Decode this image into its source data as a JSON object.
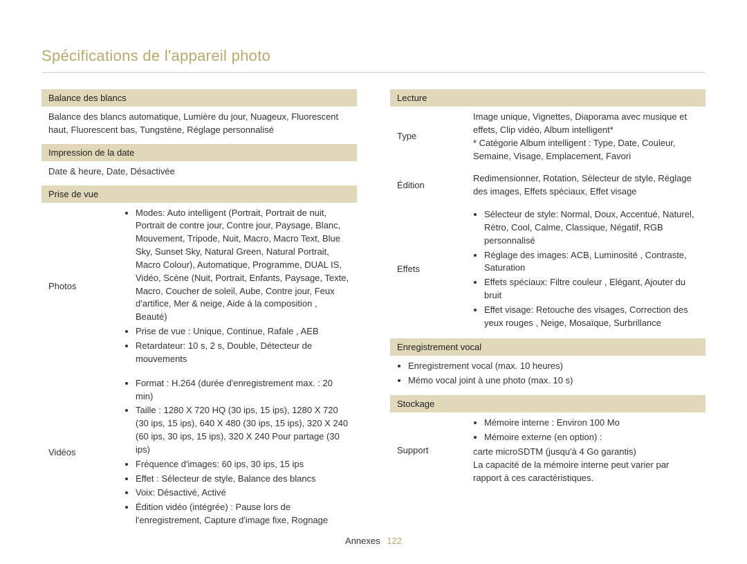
{
  "page": {
    "title": "Spécifications de l'appareil photo",
    "footer_label": "Annexes",
    "footer_page": "122"
  },
  "colors": {
    "accent": "#b9aa6b",
    "header_bg": "#e0d8b8",
    "text": "#333333",
    "rule": "#cccccc",
    "background": "#ffffff"
  },
  "left": {
    "balance": {
      "header": "Balance des blancs",
      "body": "Balance des blancs automatique, Lumière du jour, Nuageux, Fluorescent haut, Fluorescent bas, Tungstène, Réglage personnalisé"
    },
    "impression": {
      "header": "Impression de la date",
      "body": "Date & heure, Date, Désactivée"
    },
    "prise": {
      "header": "Prise de vue",
      "photos": {
        "label": "Photos",
        "items": [
          "Modes: Auto intelligent (Portrait, Portrait de nuit, Portrait de contre jour, Contre jour, Paysage, Blanc, Mouvement, Tripode, Nuit, Macro, Macro Text, Blue Sky, Sunset Sky, Natural Green, Natural Portrait, Macro Colour), Automatique, Programme, DUAL IS, Vidéo, Scène (Nuit, Portrait, Enfants, Paysage, Texte, Macro, Coucher de soleil, Aube, Contre jour, Feux d'artifice, Mer & neige, Aide à la composition , Beauté)",
          "Prise de vue : Unique, Continue, Rafale , AEB",
          "Retardateur: 10 s, 2 s, Double, Détecteur de mouvements"
        ]
      },
      "videos": {
        "label": "Vidéos",
        "items": [
          "Format : H.264 (durée d'enregistrement max. : 20 min)",
          "Taille : 1280 X 720 HQ (30 ips, 15 ips), 1280 X 720 (30 ips, 15 ips), 640 X 480 (30 ips, 15 ips), 320 X 240 (60 ips, 30 ips, 15 ips), 320 X 240 Pour partage (30 ips)",
          "Fréquence d'images: 60 ips, 30 ips, 15 ips",
          "Effet : Sélecteur de style, Balance des blancs",
          "Voix: Désactivé, Activé",
          "Édition vidéo (intégrée) : Pause lors de l'enregistrement, Capture d'image fixe, Rognage"
        ]
      }
    }
  },
  "right": {
    "lecture": {
      "header": "Lecture",
      "type": {
        "label": "Type",
        "body": "Image unique, Vignettes, Diaporama avec musique et effets, Clip vidéo, Album intelligent*\n* Catégorie Album intelligent : Type, Date, Couleur, Semaine, Visage, Emplacement, Favori"
      },
      "edition": {
        "label": "Édition",
        "body": "Redimensionner, Rotation, Sélecteur de style, Réglage des images, Effets spéciaux, Effet visage"
      },
      "effets": {
        "label": "Effets",
        "items": [
          "Sélecteur de style: Normal, Doux, Accentué, Naturel, Rétro, Cool, Calme, Classique, Négatif, RGB personnalisé",
          "Réglage des images: ACB, Luminosité , Contraste, Saturation",
          "Effets spéciaux: Filtre couleur , Elégant, Ajouter du bruit",
          "Effet visage: Retouche des visages, Correction des yeux rouges , Neige, Mosaïque, Surbrillance"
        ]
      }
    },
    "enregistrement": {
      "header": "Enregistrement vocal",
      "items": [
        "Enregistrement vocal (max. 10 heures)",
        "Mémo vocal joint à une photo (max. 10 s)"
      ]
    },
    "stockage": {
      "header": "Stockage",
      "support": {
        "label": "Support",
        "pre_items": [
          "Mémoire interne : Environ 100 Mo",
          "Mémoire externe (en option) :"
        ],
        "line": "carte microSDTM (jusqu'à 4 Go garantis)",
        "note": "La capacité de la mémoire interne peut varier par rapport à ces caractéristiques."
      }
    }
  }
}
